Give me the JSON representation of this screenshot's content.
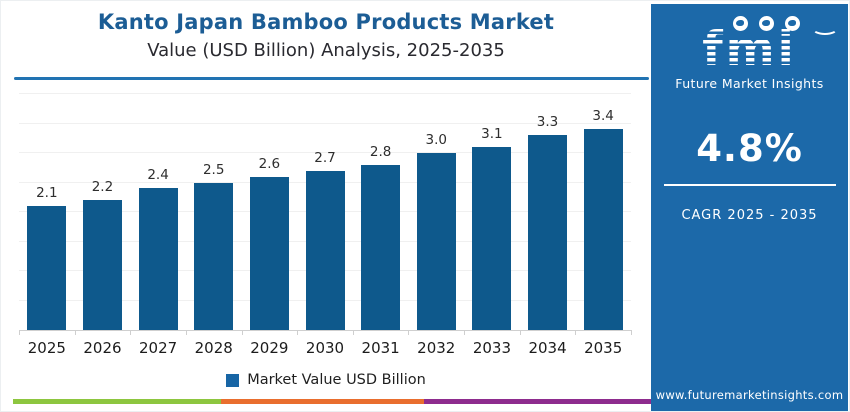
{
  "header": {
    "title": "Kanto Japan Bamboo Products Market",
    "subtitle": "Value (USD Billion) Analysis, 2025-2035"
  },
  "chart_data": {
    "type": "bar",
    "categories": [
      "2025",
      "2026",
      "2027",
      "2028",
      "2029",
      "2030",
      "2031",
      "2032",
      "2033",
      "2034",
      "2035"
    ],
    "values": [
      2.1,
      2.2,
      2.4,
      2.5,
      2.6,
      2.7,
      2.8,
      3.0,
      3.1,
      3.3,
      3.4
    ],
    "title": "Kanto Japan Bamboo Products Market",
    "subtitle": "Value (USD Billion) Analysis, 2025-2035",
    "xlabel": "",
    "ylabel": "",
    "ylim": [
      0,
      4.0
    ],
    "grid_step": 0.5,
    "grid": true,
    "data_labels": true,
    "data_label_decimals": 1,
    "legend_position": "bottom",
    "legend": "Market Value USD Billion"
  },
  "legend": {
    "label": "Market Value USD Billion"
  },
  "sidebar": {
    "logo_text": "fmi",
    "logo_tagline": "Future Market Insights",
    "cagr_value": "4.8%",
    "cagr_label": "CAGR 2025 - 2035",
    "website": "www.futuremarketinsights.com"
  },
  "theme": {
    "title_blue": "#1c5d95",
    "divider_blue": "#2173b2",
    "bar_blue": "#0e598c",
    "legend_swatch_blue": "#1765a5",
    "sidebar_blue": "#1c69a9",
    "gridline": "#f0f0f0",
    "axis": "#cfcfcf",
    "stripe_green": "#8dc63f",
    "stripe_orange": "#e96e2e",
    "stripe_purple": "#8e2c8e"
  }
}
